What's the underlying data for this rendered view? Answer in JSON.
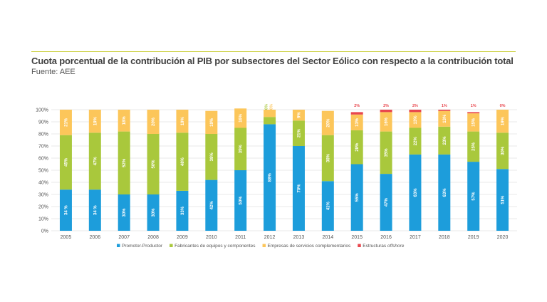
{
  "header": {
    "title": "Cuota porcentual de la contribución al PIB por subsectores del Sector Eólico con respecto a la contribución total",
    "source": "Fuente: AEE"
  },
  "colors": {
    "promotor": "#1d9ddb",
    "fabricantes": "#a9c83c",
    "servicios": "#fcc65a",
    "offshore": "#e8474e",
    "grid": "#e3e3e3",
    "axis_text": "#555555",
    "accent_line": "#c9cf3a"
  },
  "chart_data": {
    "type": "bar",
    "stacked": true,
    "categories": [
      "2005",
      "2006",
      "2007",
      "2008",
      "2009",
      "2010",
      "2011",
      "2012",
      "2013",
      "2014",
      "2015",
      "2016",
      "2017",
      "2018",
      "2019",
      "2020"
    ],
    "series": [
      {
        "name": "Promotor-Productor",
        "color_key": "promotor",
        "values": [
          34,
          34,
          30,
          30,
          33,
          42,
          50,
          88,
          70,
          41,
          55,
          47,
          63,
          63,
          57,
          51
        ],
        "labels": [
          "34 %",
          "34 %",
          "30%",
          "30%",
          "33%",
          "42%",
          "50%",
          "88%",
          "70%",
          "41%",
          "55%",
          "47%",
          "63%",
          "63%",
          "57%",
          "51%"
        ]
      },
      {
        "name": "Fabricantes de equipos y componentes",
        "color_key": "fabricantes",
        "values": [
          45,
          47,
          52,
          50,
          48,
          38,
          35,
          6,
          21,
          38,
          28,
          35,
          22,
          23,
          25,
          30
        ],
        "labels": [
          "45%",
          "47%",
          "52%",
          "50%",
          "48%",
          "38%",
          "35%",
          "6%",
          "21%",
          "38%",
          "28%",
          "35%",
          "22%",
          "23%",
          "25%",
          "30%"
        ]
      },
      {
        "name": "Empresas de servicios complementarios",
        "color_key": "servicios",
        "values": [
          21,
          19,
          18,
          20,
          19,
          19,
          16,
          6,
          9,
          20,
          13,
          16,
          13,
          13,
          15,
          19
        ],
        "labels": [
          "21%",
          "19%",
          "18%",
          "20%",
          "19%",
          "19%",
          "16%",
          "6%",
          "9%",
          "20%",
          "13%",
          "16%",
          "13%",
          "13%",
          "15%",
          "19%"
        ]
      },
      {
        "name": "Estructuras offshore",
        "color_key": "offshore",
        "values": [
          0,
          0,
          0,
          0,
          0,
          0,
          0,
          0,
          0,
          0,
          2,
          2,
          2,
          1,
          1,
          0
        ],
        "labels": [
          "",
          "",
          "",
          "",
          "",
          "",
          "",
          "",
          "",
          "",
          "2%",
          "2%",
          "2%",
          "1%",
          "1%",
          "0%"
        ]
      }
    ],
    "ylim": [
      0,
      100
    ],
    "yticks": [
      "0%",
      "10%",
      "20%",
      "30%",
      "40%",
      "50%",
      "60%",
      "70%",
      "80%",
      "90%",
      "100%"
    ],
    "grid": true,
    "legend_position": "bottom",
    "legend": [
      {
        "name": "Promotor-Productor",
        "color_key": "promotor"
      },
      {
        "name": "Fabricantes de equipos y componentes",
        "color_key": "fabricantes"
      },
      {
        "name": "Empresas de servicios complementarios",
        "color_key": "servicios"
      },
      {
        "name": "Estructuras ",
        "italic": "offshore",
        "color_key": "offshore"
      }
    ]
  }
}
